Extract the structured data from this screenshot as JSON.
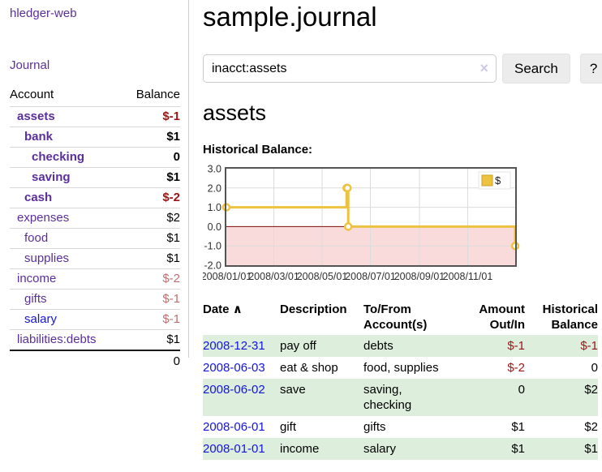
{
  "colors": {
    "link_purple": "#5b2f9b",
    "link_blue": "#1414dd",
    "negative_red": "#9a1616",
    "muted_negative_red": "#bd6f6f",
    "row_stripe_green": "#ddeedd",
    "chart_line_gold": "#EDC240",
    "chart_negative_fill_pink": "#f9dbdb",
    "chart_zero_line": "#7c0a0a",
    "chart_border": "#545454"
  },
  "sidebar": {
    "brand": "hledger-web",
    "journal_link": "Journal",
    "headers": {
      "account": "Account",
      "balance": "Balance"
    },
    "accounts": [
      {
        "name": "assets",
        "balance": "$-1",
        "indent": 1,
        "bold": true,
        "balance_style": "negative"
      },
      {
        "name": "bank",
        "balance": "$1",
        "indent": 2,
        "bold": true,
        "balance_style": "normal"
      },
      {
        "name": "checking",
        "balance": "0",
        "indent": 3,
        "bold": true,
        "balance_style": "normal"
      },
      {
        "name": "saving",
        "balance": "$1",
        "indent": 3,
        "bold": true,
        "balance_style": "normal"
      },
      {
        "name": "cash",
        "balance": "$-2",
        "indent": 2,
        "bold": true,
        "balance_style": "negative"
      },
      {
        "name": "expenses",
        "balance": "$2",
        "indent": 1,
        "bold": false,
        "balance_style": "normal"
      },
      {
        "name": "food",
        "balance": "$1",
        "indent": 2,
        "bold": false,
        "balance_style": "normal"
      },
      {
        "name": "supplies",
        "balance": "$1",
        "indent": 2,
        "bold": false,
        "balance_style": "normal"
      },
      {
        "name": "income",
        "balance": "$-2",
        "indent": 1,
        "bold": false,
        "balance_style": "muted-negative"
      },
      {
        "name": "gifts",
        "balance": "$-1",
        "indent": 2,
        "bold": false,
        "balance_style": "muted-negative"
      },
      {
        "name": "salary",
        "balance": "$-1",
        "indent": 2,
        "bold": false,
        "balance_style": "muted-negative",
        "link_color": "blue"
      },
      {
        "name": "liabilities:debts",
        "balance": "$1",
        "indent": 1,
        "bold": false,
        "balance_style": "normal"
      }
    ],
    "total": "0"
  },
  "header": {
    "title": "sample.journal"
  },
  "search": {
    "value": "inacct:assets",
    "clear_icon": "×",
    "search_button": "Search",
    "help_button": "?"
  },
  "main": {
    "account_heading": "assets",
    "chart_title": "Historical Balance:"
  },
  "chart_data": {
    "type": "line",
    "step": true,
    "title": "Historical Balance",
    "series": [
      {
        "name": "$",
        "color": "#EDC240",
        "points": [
          {
            "date": "2008-01-01",
            "day": 0,
            "value": 1
          },
          {
            "date": "2008-06-01",
            "day": 152,
            "value": 2
          },
          {
            "date": "2008-06-02",
            "day": 153,
            "value": 2
          },
          {
            "date": "2008-06-03",
            "day": 154,
            "value": 0
          },
          {
            "date": "2008-12-31",
            "day": 365,
            "value": -1
          }
        ]
      }
    ],
    "x_ticks": [
      {
        "label": "2008/01/01",
        "day": 0
      },
      {
        "label": "2008/03/01",
        "day": 60
      },
      {
        "label": "2008/05/01",
        "day": 121
      },
      {
        "label": "2008/07/01",
        "day": 182
      },
      {
        "label": "2008/09/01",
        "day": 244
      },
      {
        "label": "2008/11/01",
        "day": 305
      }
    ],
    "x_range_days": 365,
    "y_ticks": [
      3.0,
      2.0,
      1.0,
      0.0,
      -1.0,
      -2.0
    ],
    "ylim": [
      -2,
      3
    ],
    "legend": {
      "label": "$",
      "position": "top-right"
    },
    "grid": true,
    "negative_region_shaded": true
  },
  "register": {
    "headers": {
      "date": "Date",
      "sort_icon": "∧",
      "description": "Description",
      "accounts": "To/From Account(s)",
      "amount": "Amount Out/In",
      "balance": "Historical Balance"
    },
    "rows": [
      {
        "date": "2008-12-31",
        "description": "pay off",
        "accounts": "debts",
        "amount": "$-1",
        "amount_negative": true,
        "balance": "$-1",
        "balance_negative": true
      },
      {
        "date": "2008-06-03",
        "description": "eat & shop",
        "accounts": "food, supplies",
        "amount": "$-2",
        "amount_negative": true,
        "balance": "0",
        "balance_negative": false
      },
      {
        "date": "2008-06-02",
        "description": "save",
        "accounts": "saving, checking",
        "amount": "0",
        "amount_negative": false,
        "balance": "$2",
        "balance_negative": false
      },
      {
        "date": "2008-06-01",
        "description": "gift",
        "accounts": "gifts",
        "amount": "$1",
        "amount_negative": false,
        "balance": "$2",
        "balance_negative": false
      },
      {
        "date": "2008-01-01",
        "description": "income",
        "accounts": "salary",
        "amount": "$1",
        "amount_negative": false,
        "balance": "$1",
        "balance_negative": false
      }
    ]
  }
}
